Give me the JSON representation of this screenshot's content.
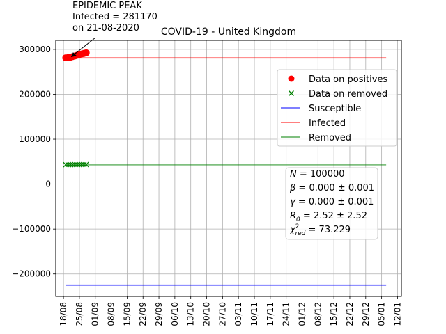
{
  "chart_data": {
    "type": "line",
    "title": "COVID-19 - United Kingdom",
    "x_tick_labels": [
      "18/08",
      "25/08",
      "01/09",
      "08/09",
      "15/09",
      "22/09",
      "29/09",
      "06/10",
      "13/10",
      "20/10",
      "27/10",
      "03/11",
      "10/11",
      "17/11",
      "24/11",
      "01/12",
      "08/12",
      "15/12",
      "22/12",
      "29/12",
      "05/01",
      "12/01"
    ],
    "y_ticks": [
      -200000,
      -100000,
      0,
      100000,
      200000,
      300000
    ],
    "y_tick_labels": [
      "−200000",
      "−100000",
      "0",
      "100000",
      "200000",
      "300000"
    ],
    "ylim": [
      -250000,
      320000
    ],
    "xlim_days_from_first_tick": [
      -3.4,
      148.7
    ],
    "grid": true,
    "legend_position": "upper right",
    "series": [
      {
        "name": "Data on positives",
        "marker": "o",
        "color": "#ff0000",
        "x_days": [
          1,
          2,
          3,
          4,
          5,
          6,
          7,
          8,
          9,
          10
        ],
        "values": [
          281170,
          281600,
          282500,
          283800,
          285200,
          286800,
          288300,
          289700,
          291000,
          292300
        ]
      },
      {
        "name": "Data on removed",
        "marker": "x",
        "color": "#008000",
        "x_days": [
          1,
          2,
          3,
          4,
          5,
          6,
          7,
          8,
          9,
          10
        ],
        "values": [
          43200,
          43250,
          43300,
          43350,
          43400,
          43450,
          43500,
          43550,
          43600,
          43650
        ]
      },
      {
        "name": "Susceptible",
        "color": "#0000ff",
        "x_days": [
          1,
          142
        ],
        "values": [
          -225000,
          -225000
        ]
      },
      {
        "name": "Infected",
        "color": "#ff0000",
        "x_days": [
          1,
          142
        ],
        "values": [
          281170,
          281170
        ]
      },
      {
        "name": "Removed",
        "color": "#008000",
        "x_days": [
          1,
          142
        ],
        "values": [
          43200,
          43200
        ]
      }
    ],
    "annotation": {
      "lines": [
        "EPIDEMIC PEAK",
        "Infected = 281170",
        "on 21-08-2020"
      ],
      "point_x_day": 3,
      "point_y": 281170
    },
    "params_box": [
      {
        "sym": "N",
        "text": " = 100000"
      },
      {
        "sym": "β",
        "text": " = 0.000 ± 0.001"
      },
      {
        "sym": "γ",
        "text": " = 0.000 ± 0.001"
      },
      {
        "sym": "R",
        "sub": "0",
        "text": " = 2.52 ± 2.52"
      },
      {
        "sym": "χ",
        "sup": "2",
        "sub": "red",
        "text": " = 73.229"
      }
    ]
  }
}
